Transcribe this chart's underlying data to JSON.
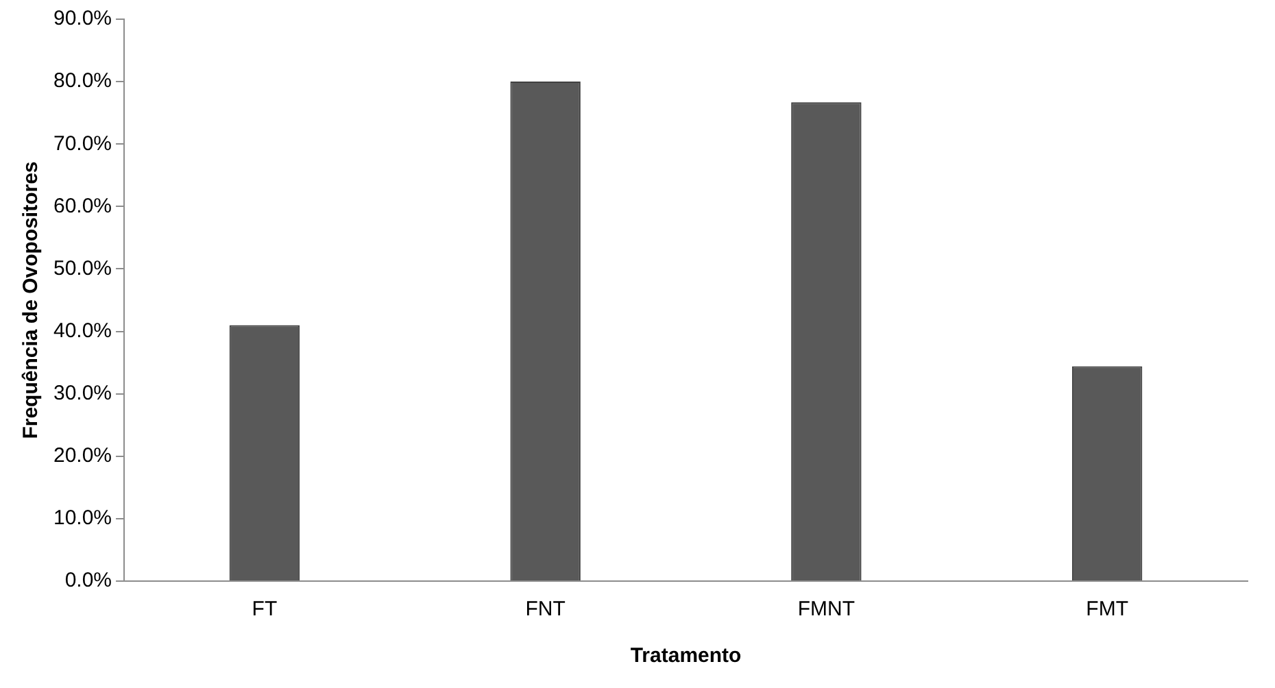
{
  "chart_data": {
    "type": "bar",
    "xlabel": "Tratamento",
    "ylabel": "Frequência de Ovopositores",
    "categories": [
      "FT",
      "FNT",
      "FMNT",
      "FMT"
    ],
    "values": [
      41.0,
      80.0,
      76.7,
      34.4
    ],
    "color": "#595959",
    "ylim": [
      0,
      90
    ],
    "yticks": [
      {
        "value": 0,
        "label": "0.0%"
      },
      {
        "value": 10,
        "label": "10.0%"
      },
      {
        "value": 20,
        "label": "20.0%"
      },
      {
        "value": 30,
        "label": "30.0%"
      },
      {
        "value": 40,
        "label": "40.0%"
      },
      {
        "value": 50,
        "label": "50.0%"
      },
      {
        "value": 60,
        "label": "60.0%"
      },
      {
        "value": 70,
        "label": "70.0%"
      },
      {
        "value": 80,
        "label": "80.0%"
      },
      {
        "value": 90,
        "label": "90.0%"
      }
    ],
    "grid": false,
    "legend": false
  }
}
